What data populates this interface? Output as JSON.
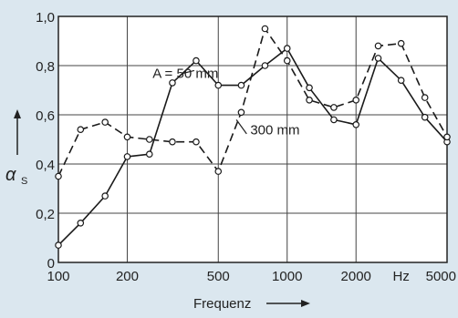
{
  "chart_data": {
    "type": "line",
    "title": "",
    "xlabel": "Frequenz",
    "ylabel_symbol": "α",
    "ylabel_subscript": "S",
    "x_scale": "log",
    "xlim": [
      100,
      5000
    ],
    "ylim": [
      0,
      1.0
    ],
    "grid": true,
    "x_ticks": [
      {
        "value": 100,
        "label": "100"
      },
      {
        "value": 200,
        "label": "200"
      },
      {
        "value": 500,
        "label": "500"
      },
      {
        "value": 1000,
        "label": "1000"
      },
      {
        "value": 2000,
        "label": "2000"
      },
      {
        "value": 5000,
        "label": "5000"
      }
    ],
    "x_unit_label": "Hz",
    "y_ticks": [
      {
        "value": 0,
        "label": "0"
      },
      {
        "value": 0.2,
        "label": "0,2"
      },
      {
        "value": 0.4,
        "label": "0,4"
      },
      {
        "value": 0.6,
        "label": "0,6"
      },
      {
        "value": 0.8,
        "label": "0,8"
      },
      {
        "value": 1.0,
        "label": "1,0"
      }
    ],
    "series": [
      {
        "label": "A = 50 mm",
        "style": "solid",
        "x": [
          100,
          125,
          160,
          200,
          250,
          315,
          400,
          500,
          630,
          800,
          1000,
          1250,
          1600,
          2000,
          2500,
          3150,
          4000,
          5000
        ],
        "y": [
          0.07,
          0.16,
          0.27,
          0.43,
          0.44,
          0.73,
          0.82,
          0.72,
          0.72,
          0.8,
          0.87,
          0.71,
          0.58,
          0.56,
          0.83,
          0.74,
          0.59,
          0.49
        ]
      },
      {
        "label": "300 mm",
        "style": "dashed",
        "x": [
          100,
          125,
          160,
          200,
          250,
          315,
          400,
          500,
          630,
          800,
          1000,
          1250,
          1600,
          2000,
          2500,
          3150,
          4000,
          5000
        ],
        "y": [
          0.35,
          0.54,
          0.57,
          0.51,
          0.5,
          0.49,
          0.49,
          0.37,
          0.61,
          0.95,
          0.82,
          0.66,
          0.63,
          0.66,
          0.88,
          0.89,
          0.67,
          0.51
        ]
      }
    ]
  }
}
